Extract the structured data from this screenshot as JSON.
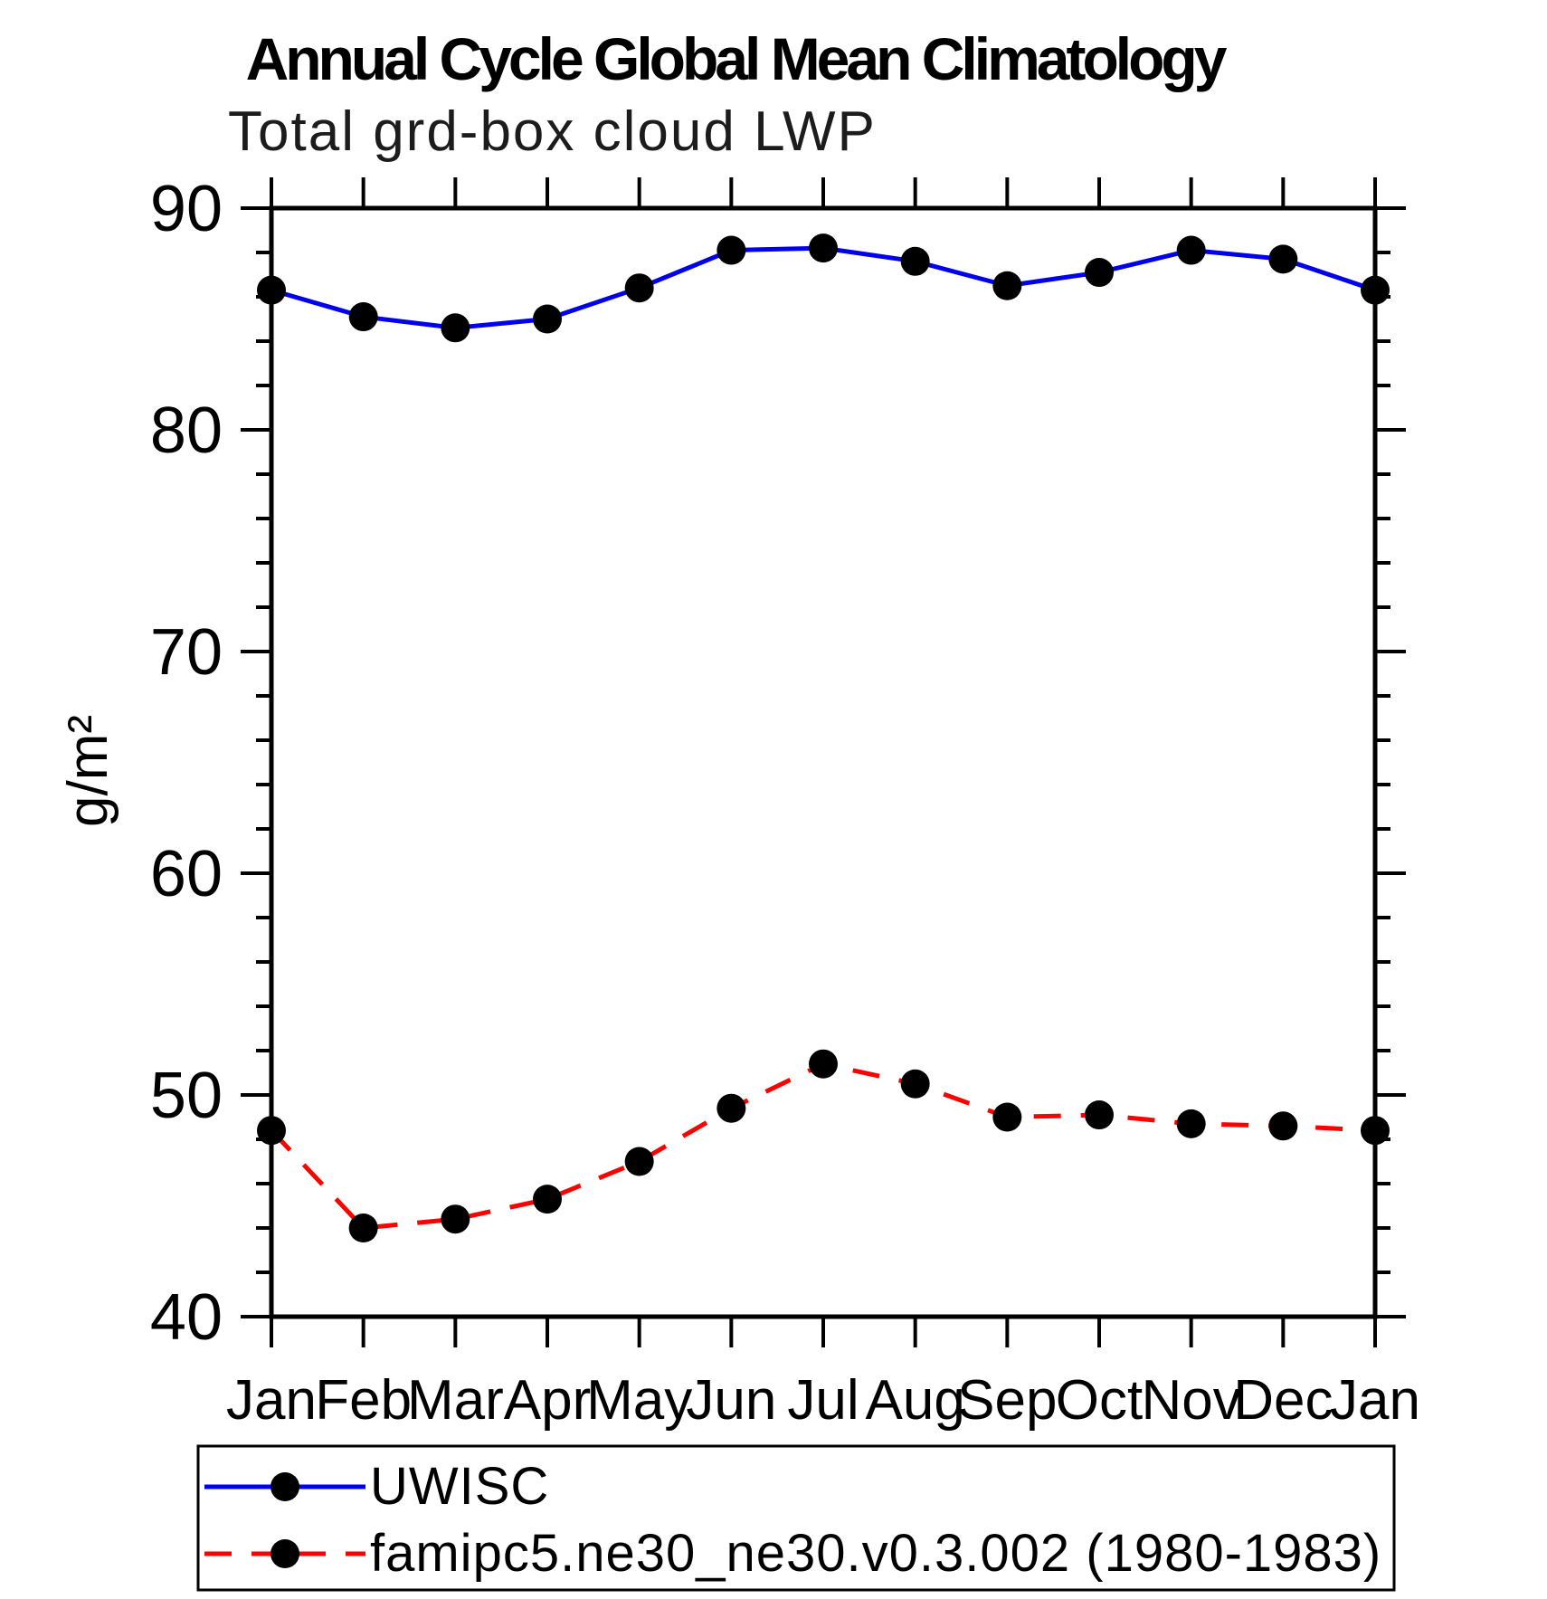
{
  "title": "Annual Cycle Global Mean Climatology",
  "subtitle": "Total grd-box cloud LWP",
  "ylabel": "g/m²",
  "colors": {
    "uwisc_line": "#0000ee",
    "model_line": "#ff0000",
    "marker": "#000000",
    "axis": "#000000",
    "background": "#ffffff"
  },
  "legend": {
    "items": [
      {
        "label": "UWISC",
        "line_style": "solid",
        "color": "#0000ee"
      },
      {
        "label": "famipc5.ne30_ne30.v0.3.002 (1980-1983)",
        "line_style": "dashed",
        "color": "#ff0000"
      }
    ],
    "position": "bottom"
  },
  "chart_data": {
    "type": "line",
    "title": "Annual Cycle Global Mean Climatology",
    "subtitle": "Total grd-box cloud LWP",
    "ylabel": "g/m²",
    "xlabel": "",
    "categories": [
      "Jan",
      "Feb",
      "Mar",
      "Apr",
      "May",
      "Jun",
      "Jul",
      "Aug",
      "Sep",
      "Oct",
      "Nov",
      "Dec",
      "Jan"
    ],
    "series": [
      {
        "name": "UWISC",
        "color": "#0000ee",
        "style": "solid",
        "marker": "filled-circle",
        "values": [
          86.3,
          85.1,
          84.6,
          85.0,
          86.4,
          88.1,
          88.2,
          87.6,
          86.5,
          87.1,
          88.1,
          87.7,
          86.3
        ]
      },
      {
        "name": "famipc5.ne30_ne30.v0.3.002 (1980-1983)",
        "color": "#ff0000",
        "style": "dashed",
        "marker": "filled-circle",
        "values": [
          48.4,
          44.0,
          44.4,
          45.3,
          47.0,
          49.4,
          51.4,
          50.5,
          49.0,
          49.1,
          48.7,
          48.6,
          48.4
        ]
      }
    ],
    "ylim": [
      40,
      90
    ],
    "ytick_major": [
      40,
      50,
      60,
      70,
      80,
      90
    ],
    "ytick_minor_step": 2,
    "grid": false,
    "legend_position": "bottom"
  }
}
